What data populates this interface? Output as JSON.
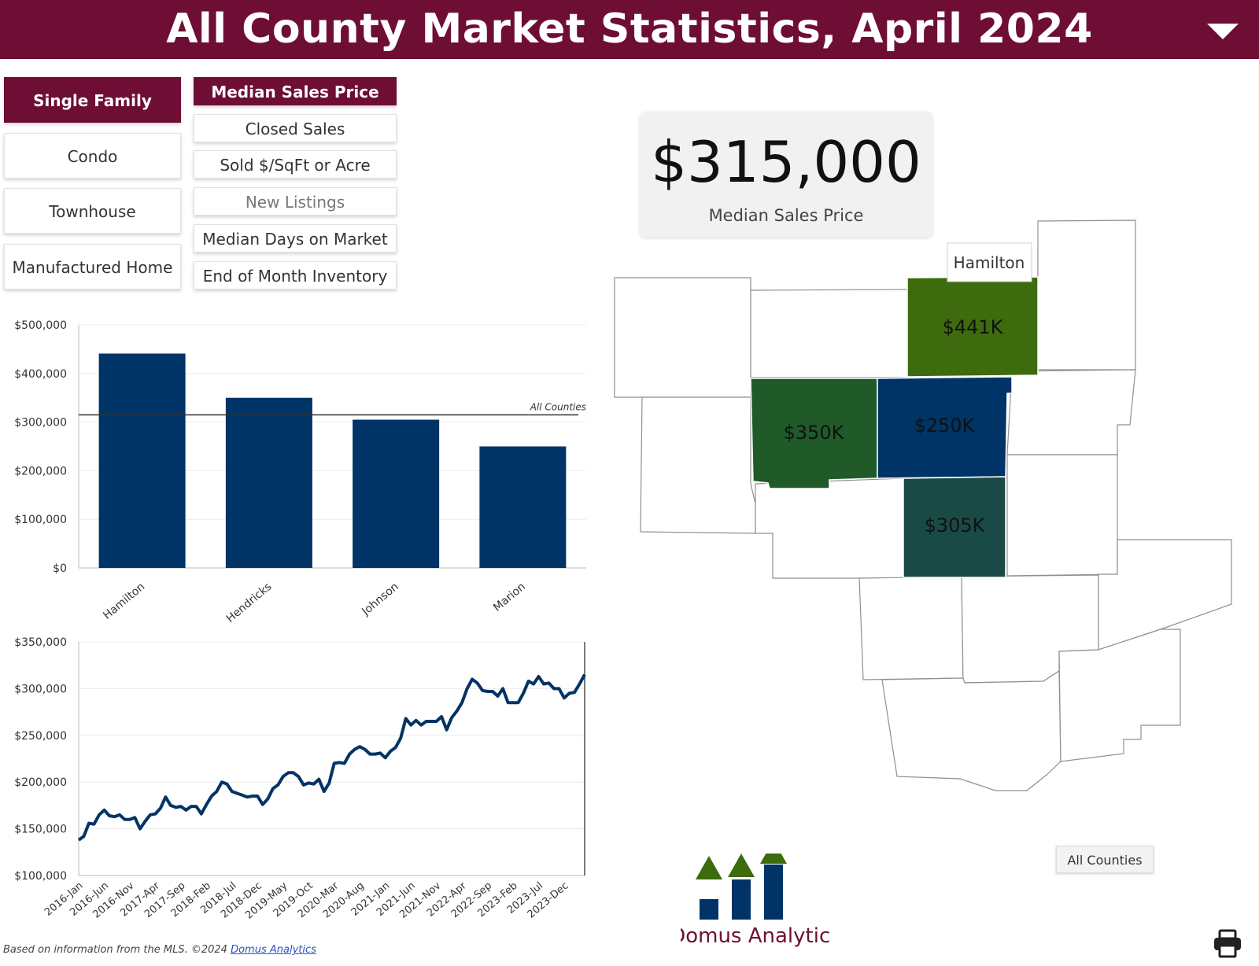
{
  "header": {
    "title": "All County Market Statistics,  April 2024"
  },
  "property_types": [
    "Single Family",
    "Condo",
    "Townhouse",
    "Manufactured Home"
  ],
  "metrics": [
    "Median Sales Price",
    "Closed Sales",
    "Sold $/SqFt or Acre",
    "New Listings",
    "Median Days on Market",
    "End of Month Inventory"
  ],
  "kpi": {
    "value": "$315,000",
    "label": "Median Sales Price"
  },
  "map": {
    "tooltip": "Hamilton",
    "highlight_labels": [
      "$441K",
      "$350K",
      "$250K",
      "$305K"
    ],
    "colors": {
      "hamilton": "#3d6b0d",
      "hendricks": "#1f5a28",
      "marion": "#003366",
      "johnson": "#1a4a45"
    }
  },
  "chart_data": [
    {
      "type": "bar",
      "categories": [
        "Hamilton",
        "Hendricks",
        "Johnson",
        "Marion"
      ],
      "values": [
        441000,
        350000,
        305000,
        250000
      ],
      "ylim": [
        0,
        500000
      ],
      "yticks": [
        "$0",
        "$100,000",
        "$200,000",
        "$300,000",
        "$400,000",
        "$500,000"
      ],
      "reference_line": {
        "label": "All Counties",
        "value": 315000
      },
      "color": "#003366"
    },
    {
      "type": "line",
      "ylim": [
        100000,
        350000
      ],
      "yticks": [
        "$100,000",
        "$150,000",
        "$200,000",
        "$250,000",
        "$300,000",
        "$350,000"
      ],
      "xticks": [
        "2016-Jan",
        "2016-Jun",
        "2016-Nov",
        "2017-Apr",
        "2017-Sep",
        "2018-Feb",
        "2018-Jul",
        "2018-Dec",
        "2019-May",
        "2019-Oct",
        "2020-Mar",
        "2020-Aug",
        "2021-Jan",
        "2021-Jun",
        "2021-Nov",
        "2022-Apr",
        "2022-Sep",
        "2023-Feb",
        "2023-Jul",
        "2023-Dec"
      ],
      "series": [
        {
          "values": [
            138000,
            142000,
            156000,
            155000,
            165000,
            170000,
            164000,
            163000,
            165000,
            160000,
            160000,
            162000,
            150000,
            158000,
            165000,
            166000,
            172000,
            184000,
            175000,
            173000,
            174000,
            170000,
            174000,
            174000,
            166000,
            176000,
            185000,
            190000,
            200000,
            198000,
            190000,
            188000,
            186000,
            184000,
            185000,
            185000,
            176000,
            182000,
            193000,
            197000,
            206000,
            210000,
            210000,
            206000,
            197000,
            199000,
            198000,
            203000,
            190000,
            199000,
            220000,
            221000,
            220000,
            230000,
            235000,
            238000,
            235000,
            230000,
            230000,
            231000,
            226000,
            233000,
            237000,
            247000,
            268000,
            261000,
            266000,
            261000,
            265000,
            265000,
            265000,
            270000,
            256000,
            269000,
            276000,
            285000,
            300000,
            310000,
            306000,
            298000,
            297000,
            297000,
            292000,
            300000,
            285000,
            285000,
            285000,
            295000,
            308000,
            305000,
            313000,
            305000,
            306000,
            300000,
            300000,
            290000,
            295000,
            296000,
            305000,
            315000
          ]
        }
      ],
      "color": "#003366"
    }
  ],
  "footer": {
    "text": "Based on information from the MLS.  ©2024 ",
    "link": "Domus Analytics"
  },
  "all_counties_button": "All Counties",
  "logo": {
    "text": "Domus Analytics"
  }
}
